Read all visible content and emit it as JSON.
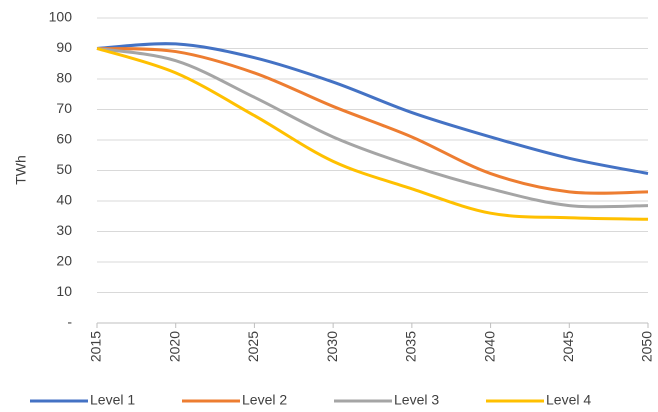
{
  "chart_data": {
    "type": "line",
    "y_label": "TWh",
    "x": [
      2015,
      2020,
      2025,
      2030,
      2035,
      2040,
      2045,
      2050
    ],
    "series": [
      {
        "name": "Level 1",
        "color": "#4472c4",
        "values": [
          90,
          91.5,
          87,
          79,
          69,
          61,
          54,
          49
        ]
      },
      {
        "name": "Level 2",
        "color": "#ed7d31",
        "values": [
          90,
          89,
          82,
          71,
          61,
          49,
          43,
          43
        ]
      },
      {
        "name": "Level 3",
        "color": "#a5a5a5",
        "values": [
          90,
          86,
          74,
          61,
          51.5,
          44,
          38.5,
          38.5
        ]
      },
      {
        "name": "Level 4",
        "color": "#ffc000",
        "values": [
          90,
          82,
          68,
          53,
          44,
          36,
          34.5,
          34
        ]
      }
    ],
    "xlim": [
      2015,
      2050
    ],
    "xticks": [
      2015,
      2020,
      2025,
      2030,
      2035,
      2040,
      2045,
      2050
    ],
    "ylim": [
      0,
      100
    ],
    "yticks": [
      {
        "value": 0,
        "label": "-"
      },
      10,
      20,
      30,
      40,
      50,
      60,
      70,
      80,
      90,
      100
    ],
    "grid": true,
    "legend": "bottom"
  }
}
